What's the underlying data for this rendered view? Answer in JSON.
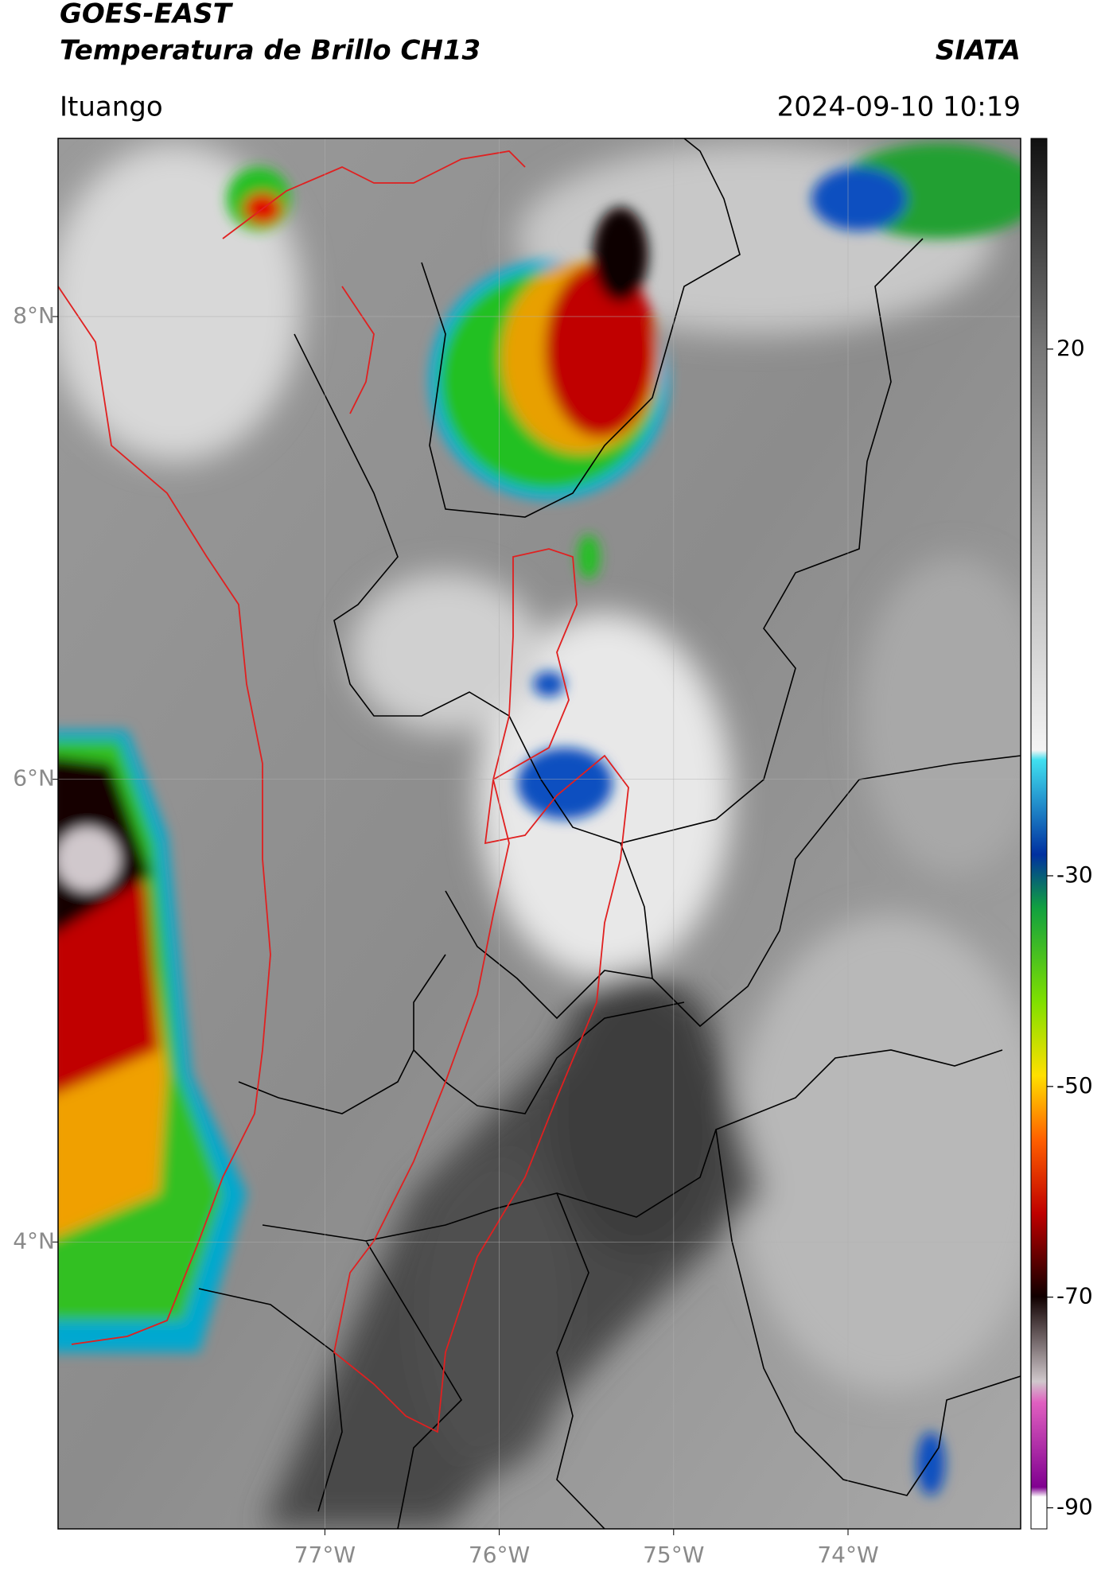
{
  "header": {
    "title": "GOES-EAST",
    "subtitle": "Temperatura de Brillo CH13",
    "brand": "SIATA",
    "location": "Ituango",
    "datetime": "2024-09-10 10:19"
  },
  "map": {
    "xlim": [
      -78.53,
      -73.01
    ],
    "ylim": [
      2.76,
      8.77
    ],
    "xticks": [
      {
        "value": -77,
        "label": "77°W"
      },
      {
        "value": -76,
        "label": "76°W"
      },
      {
        "value": -75,
        "label": "75°W"
      },
      {
        "value": -74,
        "label": "74°W"
      }
    ],
    "yticks": [
      {
        "value": 4,
        "label": "4°N"
      },
      {
        "value": 6,
        "label": "6°N"
      },
      {
        "value": 8,
        "label": "8°N"
      }
    ]
  },
  "colorbar": {
    "lim": [
      -92,
      40
    ],
    "ticks": [
      20,
      -30,
      -50,
      -70,
      -90
    ]
  }
}
